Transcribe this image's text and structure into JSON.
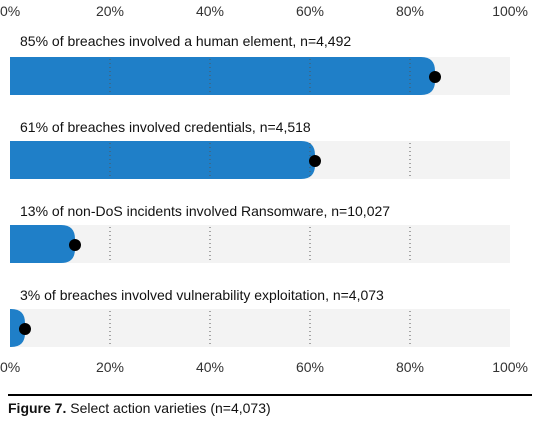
{
  "chart_data": {
    "type": "bar",
    "orientation": "horizontal",
    "categories": [
      "85% of breaches involved a human element, n=4,492",
      "61% of breaches involved credentials, n=4,518",
      "13% of non-DoS incidents involved Ransomware, n=10,027",
      "3% of breaches involved vulnerability exploitation, n=4,073"
    ],
    "values": [
      85,
      61,
      13,
      3
    ],
    "xlim": [
      0,
      100
    ],
    "x_ticks": [
      "0%",
      "20%",
      "40%",
      "60%",
      "80%",
      "100%"
    ],
    "grid": true,
    "colors": {
      "bar": "#1f7fc8",
      "track": "#f3f3f3",
      "marker": "#000000",
      "grid": "#555555"
    }
  },
  "caption": {
    "prefix": "Figure 7.",
    "text": " Select action varieties (n=4,073)"
  }
}
